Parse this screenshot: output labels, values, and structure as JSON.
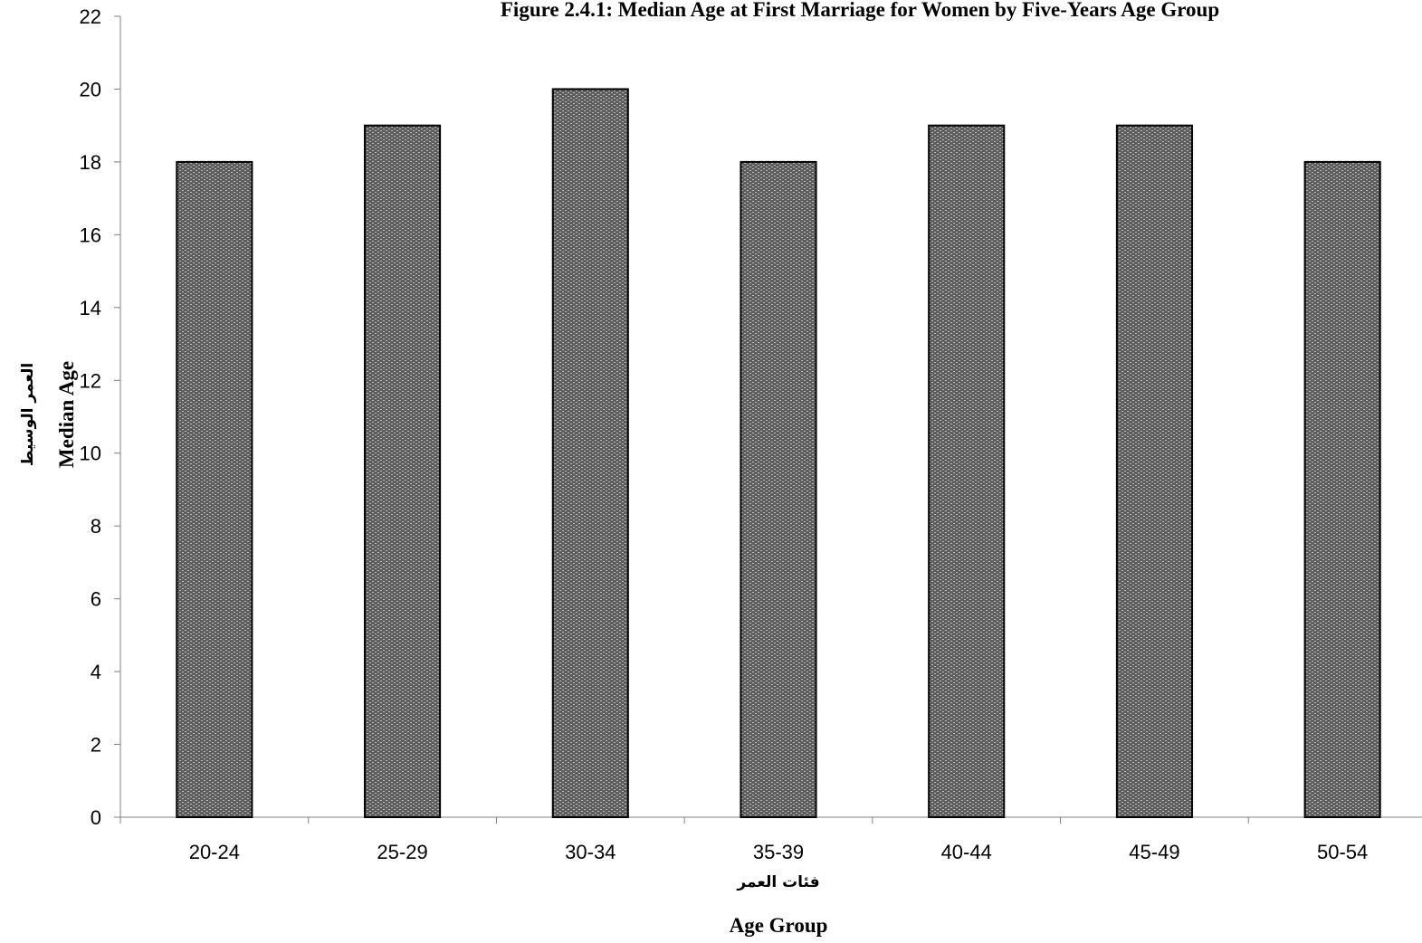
{
  "chart_data": {
    "type": "bar",
    "title": "Figure 2.4.1: Median Age at First Marriage for Women by Five-Years Age Group",
    "xlabel": "Age Group",
    "xlabel_arabic": "فئات العمر",
    "ylabel": "Median Age",
    "ylabel_arabic": "العمر الوسيط",
    "categories": [
      "20-24",
      "25-29",
      "30-34",
      "35-39",
      "40-44",
      "45-49",
      "50-54"
    ],
    "values": [
      18,
      19,
      20,
      18,
      19,
      19,
      18
    ],
    "ylim": [
      0,
      22
    ],
    "yticks": [
      "0",
      "2",
      "4",
      "6",
      "8",
      "10",
      "12",
      "14",
      "16",
      "18",
      "20",
      "22"
    ],
    "grid": false,
    "legend": "none",
    "bar_fill": "#5e5e5e",
    "bar_pattern_light": "#bdbdbd",
    "bar_outline": "#000000"
  }
}
